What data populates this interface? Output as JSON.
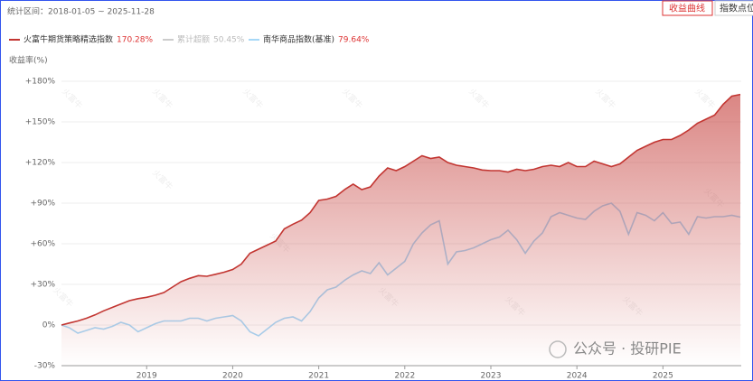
{
  "period": "统计区间：2018-01-05 ~ 2025-11-28",
  "buttons": [
    "收益曲线",
    "指数点位"
  ],
  "excess": {
    "name": "累计超额",
    "return": {
      "value": 50.45,
      "label": "50.45%"
    }
  },
  "watermark": "火富牛",
  "footer": "公众号 · 投研PIE",
  "chart_data": {
    "type": "line",
    "ylabel": "收益率(%)",
    "xlim": [
      2018.01,
      2025.91
    ],
    "xticks": [
      2019,
      2020,
      2021,
      2022,
      2023,
      2024,
      2025
    ],
    "ylim": [
      -30,
      180
    ],
    "yticks": [
      {
        "value": -30,
        "label": "-30%"
      },
      {
        "value": 0,
        "label": "0%"
      },
      {
        "value": 30,
        "label": "+30%"
      },
      {
        "value": 60,
        "label": "+60%"
      },
      {
        "value": 90,
        "label": "+90%"
      },
      {
        "value": 120,
        "label": "+120%"
      },
      {
        "value": 150,
        "label": "+150%"
      },
      {
        "value": 180,
        "label": "+180%"
      }
    ],
    "grid": true,
    "x": [
      2018.01,
      2018.1,
      2018.2,
      2018.3,
      2018.4,
      2018.5,
      2018.6,
      2018.7,
      2018.8,
      2018.9,
      2019.0,
      2019.1,
      2019.2,
      2019.3,
      2019.4,
      2019.5,
      2019.6,
      2019.7,
      2019.8,
      2019.9,
      2020.0,
      2020.1,
      2020.2,
      2020.3,
      2020.4,
      2020.5,
      2020.6,
      2020.7,
      2020.8,
      2020.9,
      2021.0,
      2021.1,
      2021.2,
      2021.3,
      2021.4,
      2021.5,
      2021.6,
      2021.7,
      2021.8,
      2021.9,
      2022.0,
      2022.1,
      2022.2,
      2022.3,
      2022.4,
      2022.5,
      2022.6,
      2022.7,
      2022.8,
      2022.9,
      2023.0,
      2023.1,
      2023.2,
      2023.3,
      2023.4,
      2023.5,
      2023.6,
      2023.7,
      2023.8,
      2023.9,
      2024.0,
      2024.1,
      2024.2,
      2024.3,
      2024.4,
      2024.5,
      2024.6,
      2024.7,
      2024.8,
      2024.9,
      2025.0,
      2025.1,
      2025.2,
      2025.3,
      2025.4,
      2025.5,
      2025.6,
      2025.7,
      2025.8,
      2025.9
    ],
    "series": [
      {
        "name": "火富牛期货策略精选指数",
        "color": "#c23531",
        "fill": true,
        "return": {
          "value": 170.28,
          "label": "170.28%"
        },
        "values": [
          0,
          1.5,
          3,
          5,
          7.5,
          10.5,
          13,
          15.5,
          18,
          19.5,
          20.5,
          22,
          24,
          28,
          32,
          34.5,
          36.5,
          36,
          37.5,
          39,
          41,
          45,
          53,
          56,
          59,
          62,
          71,
          74.5,
          77.5,
          83,
          92,
          93,
          95,
          100,
          104,
          100,
          102,
          110,
          116,
          114,
          117,
          121,
          125,
          123,
          124,
          120,
          118,
          117,
          116,
          114.5,
          114,
          114,
          113,
          115,
          114,
          115,
          117,
          118,
          117,
          120,
          117,
          117,
          121,
          119,
          117,
          119,
          124,
          129,
          132,
          135,
          137,
          137,
          140,
          144,
          149,
          152,
          155,
          163,
          169,
          170.28
        ]
      },
      {
        "name": "南华商品指数(基准)",
        "color": "#a6d8f7",
        "fill": false,
        "return": {
          "value": 79.64,
          "label": "79.64%"
        },
        "values": [
          0,
          -2,
          -6,
          -4,
          -2,
          -3,
          -1,
          2,
          0,
          -5,
          -2,
          1,
          3,
          3,
          3,
          5,
          5,
          3,
          5,
          6,
          7,
          3,
          -5,
          -8,
          -3,
          2,
          5,
          6,
          3,
          10,
          20,
          26,
          28,
          33,
          37,
          40,
          38,
          46,
          37,
          42,
          47,
          60,
          68,
          74,
          77,
          45,
          54,
          55,
          57,
          60,
          63,
          65,
          70,
          63,
          53,
          62,
          68,
          80,
          83,
          81,
          79,
          78,
          84,
          88,
          90,
          84,
          67,
          83,
          81,
          77,
          83,
          75,
          76,
          67,
          80,
          79,
          80,
          80,
          81,
          79.64
        ]
      }
    ]
  }
}
